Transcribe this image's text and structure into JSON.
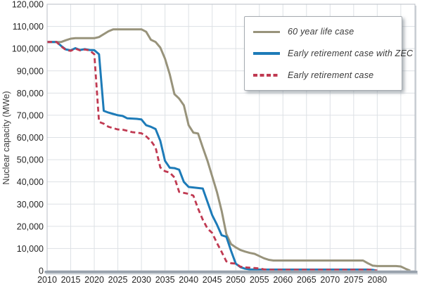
{
  "chart_data": {
    "type": "line",
    "title": "",
    "xlabel": "",
    "ylabel": "Nuclear capacity (MWe)",
    "xlim": [
      2010,
      2088
    ],
    "ylim": [
      0,
      120000
    ],
    "x_ticks": [
      2010,
      2015,
      2020,
      2025,
      2030,
      2035,
      2040,
      2045,
      2050,
      2055,
      2060,
      2065,
      2070,
      2075,
      2080
    ],
    "x_gridline_years": [
      2015,
      2020,
      2025,
      2030,
      2035,
      2040,
      2045,
      2050,
      2055,
      2060,
      2065,
      2070,
      2075,
      2080,
      2085
    ],
    "y_tick_step": 10000,
    "grid": true,
    "legend_position": "top-right",
    "colors": {
      "grid": "#dde1e5",
      "plot_border": "#b8bec4",
      "axis_band": "#98a2ac",
      "tick_text": "#262626",
      "axis_title_text": "#3c3c3c"
    },
    "series": [
      {
        "name": "60 year life case",
        "color": "#98937b",
        "style": "solid",
        "points": [
          [
            2010,
            103000
          ],
          [
            2013,
            103000
          ],
          [
            2014,
            103800
          ],
          [
            2015,
            104500
          ],
          [
            2016,
            104700
          ],
          [
            2020,
            104700
          ],
          [
            2021,
            105200
          ],
          [
            2023,
            107800
          ],
          [
            2024,
            108700
          ],
          [
            2030,
            108700
          ],
          [
            2031,
            107600
          ],
          [
            2032,
            104000
          ],
          [
            2033,
            103000
          ],
          [
            2034,
            100500
          ],
          [
            2035,
            95500
          ],
          [
            2036,
            88500
          ],
          [
            2037,
            79500
          ],
          [
            2038,
            77500
          ],
          [
            2039,
            74500
          ],
          [
            2040,
            65500
          ],
          [
            2041,
            62200
          ],
          [
            2042,
            61800
          ],
          [
            2043,
            55500
          ],
          [
            2044,
            49500
          ],
          [
            2045,
            42500
          ],
          [
            2046,
            35500
          ],
          [
            2047,
            27000
          ],
          [
            2048,
            16500
          ],
          [
            2049,
            12000
          ],
          [
            2050,
            10500
          ],
          [
            2051,
            9300
          ],
          [
            2052,
            8600
          ],
          [
            2053,
            8000
          ],
          [
            2054,
            7600
          ],
          [
            2055,
            6600
          ],
          [
            2056,
            5600
          ],
          [
            2057,
            4900
          ],
          [
            2058,
            4600
          ],
          [
            2077,
            4600
          ],
          [
            2078,
            3400
          ],
          [
            2079,
            2300
          ],
          [
            2080,
            2100
          ],
          [
            2084,
            2100
          ],
          [
            2085,
            1900
          ],
          [
            2086,
            900
          ],
          [
            2087,
            0
          ]
        ]
      },
      {
        "name": "Early retirement case with ZEC",
        "color": "#1d7bb8",
        "style": "solid",
        "points": [
          [
            2010,
            103000
          ],
          [
            2012,
            103000
          ],
          [
            2013,
            101200
          ],
          [
            2014,
            99600
          ],
          [
            2015,
            99200
          ],
          [
            2016,
            100200
          ],
          [
            2017,
            99400
          ],
          [
            2018,
            99800
          ],
          [
            2019,
            99400
          ],
          [
            2020,
            99300
          ],
          [
            2021,
            97500
          ],
          [
            2022,
            72000
          ],
          [
            2023,
            71200
          ],
          [
            2024,
            70600
          ],
          [
            2025,
            70000
          ],
          [
            2026,
            69700
          ],
          [
            2027,
            68600
          ],
          [
            2029,
            68400
          ],
          [
            2030,
            68100
          ],
          [
            2031,
            65500
          ],
          [
            2032,
            64800
          ],
          [
            2033,
            63800
          ],
          [
            2034,
            58500
          ],
          [
            2035,
            49500
          ],
          [
            2036,
            46400
          ],
          [
            2037,
            46200
          ],
          [
            2038,
            45500
          ],
          [
            2039,
            40000
          ],
          [
            2040,
            37700
          ],
          [
            2043,
            37000
          ],
          [
            2044,
            31000
          ],
          [
            2045,
            25000
          ],
          [
            2046,
            20800
          ],
          [
            2047,
            16000
          ],
          [
            2048,
            15300
          ],
          [
            2049,
            9000
          ],
          [
            2050,
            3200
          ],
          [
            2051,
            1600
          ],
          [
            2052,
            900
          ],
          [
            2053,
            600
          ],
          [
            2055,
            500
          ],
          [
            2078,
            500
          ],
          [
            2079,
            400
          ],
          [
            2080,
            0
          ]
        ]
      },
      {
        "name": "Early retirement case",
        "color": "#c03a52",
        "style": "dashed",
        "points": [
          [
            2010,
            103000
          ],
          [
            2012,
            103000
          ],
          [
            2013,
            101000
          ],
          [
            2014,
            99400
          ],
          [
            2015,
            99000
          ],
          [
            2016,
            100000
          ],
          [
            2017,
            99200
          ],
          [
            2018,
            99600
          ],
          [
            2019,
            99200
          ],
          [
            2020,
            97500
          ],
          [
            2021,
            67000
          ],
          [
            2022,
            66200
          ],
          [
            2023,
            64800
          ],
          [
            2024,
            64200
          ],
          [
            2025,
            63600
          ],
          [
            2026,
            63500
          ],
          [
            2027,
            63000
          ],
          [
            2028,
            62400
          ],
          [
            2030,
            61900
          ],
          [
            2031,
            60500
          ],
          [
            2032,
            58500
          ],
          [
            2033,
            55500
          ],
          [
            2034,
            46500
          ],
          [
            2035,
            44800
          ],
          [
            2036,
            44200
          ],
          [
            2037,
            42000
          ],
          [
            2038,
            35500
          ],
          [
            2040,
            34600
          ],
          [
            2041,
            33800
          ],
          [
            2042,
            28000
          ],
          [
            2043,
            23000
          ],
          [
            2044,
            19000
          ],
          [
            2045,
            17000
          ],
          [
            2046,
            12500
          ],
          [
            2047,
            8500
          ],
          [
            2048,
            4200
          ],
          [
            2049,
            3400
          ],
          [
            2050,
            3200
          ],
          [
            2051,
            1800
          ],
          [
            2052,
            1500
          ],
          [
            2054,
            1200
          ],
          [
            2055,
            1000
          ],
          [
            2056,
            600
          ],
          [
            2057,
            450
          ],
          [
            2079,
            450
          ],
          [
            2080,
            0
          ]
        ]
      }
    ]
  }
}
